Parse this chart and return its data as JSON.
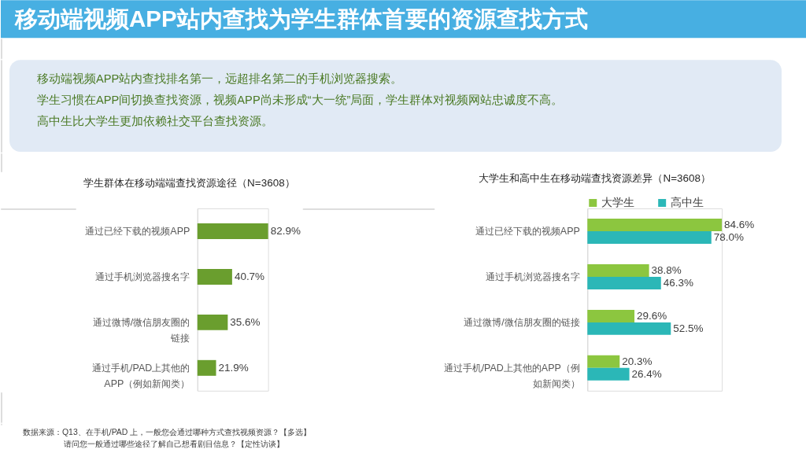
{
  "chart_data": [
    {
      "type": "other",
      "title": "移动端视频APP站内查找为学生群体首要的资源查找方式",
      "annotations": [
        "移动端视频APP站内查找排名第一，远超排名第二的手机浏览器搜索。",
        "学生习惯在APP间切换查找资源，视频APP尚未形成“大一统”局面，学生群体对视频网站忠诚度不高。",
        "高中生比大学生更加依赖社交平台查找资源。"
      ]
    },
    {
      "type": "bar",
      "orientation": "horizontal",
      "title": "学生群体在移动端端查找资源途径（N=3608）",
      "categories": [
        "通过已经下载的视频APP",
        "通过手机浏览器搜名字",
        "通过微博/微信朋友圈的链接",
        "通过手机/PAD上其他的APP（例如新闻类）"
      ],
      "values": [
        82.9,
        40.7,
        35.6,
        21.9
      ],
      "value_labels": [
        "82.9%",
        "40.7%",
        "35.6%",
        "21.9%"
      ],
      "color": "#6a9e2e",
      "tick_labels": "y",
      "annotations": [
        "数据来源：Q13、在手机/PAD 上，一般您会通过哪种方式查找视频资源？【多选】",
        "请问您一般通过哪些途径了解自己想看剧目信息？【定性访谈】"
      ]
    },
    {
      "type": "bar",
      "orientation": "horizontal",
      "title": "大学生和高中生在移动端查找资源差异（N=3608）",
      "categories": [
        "通过已经下载的视频APP",
        "通过手机浏览器搜名字",
        "通过微博/微信朋友圈的链接",
        "通过手机/PAD上其他的APP（例如新闻类）"
      ],
      "series": [
        {
          "name": "大学生",
          "color": "#8cc63f",
          "values": [
            84.6,
            38.8,
            29.6,
            20.3
          ],
          "value_labels": [
            "84.6%",
            "38.8%",
            "29.6%",
            "20.3%"
          ]
        },
        {
          "name": "高中生",
          "color": "#2bb7b7",
          "values": [
            78.0,
            46.3,
            52.5,
            26.4
          ],
          "value_labels": [
            "78.0%",
            "46.3%",
            "52.5%",
            "26.4%"
          ]
        }
      ],
      "legend": "top",
      "tick_labels": "y"
    }
  ]
}
